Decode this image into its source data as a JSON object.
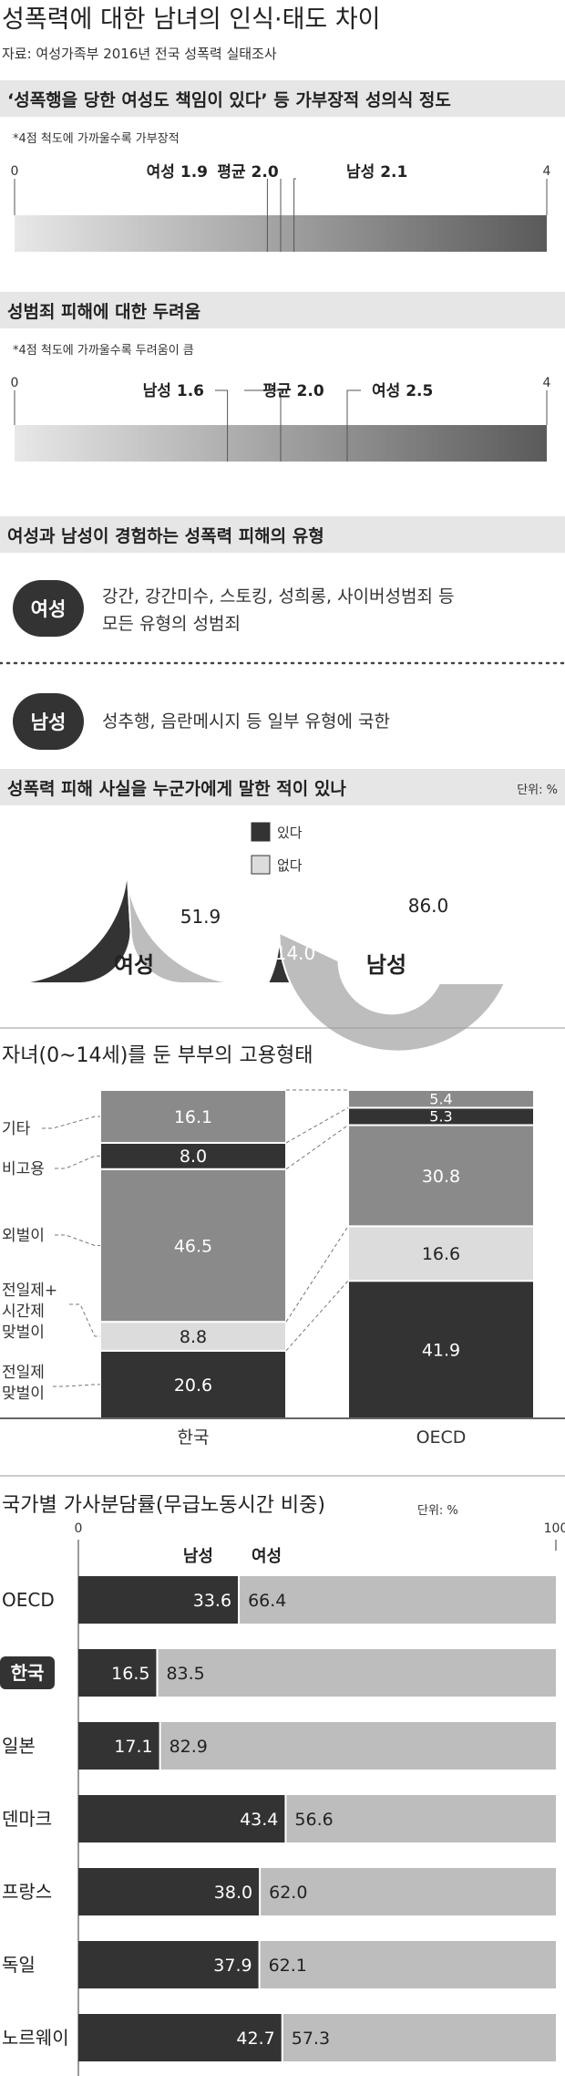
{
  "page": {
    "title": "성폭력에 대한 남녀의 인식·태도 차이",
    "source": "자료: 여성가족부 2016년 전국 성폭력 실태조사"
  },
  "colors": {
    "dark": "#333333",
    "mid": "#8a8a8a",
    "light": "#bdbdbd",
    "lighter": "#dcdcdc",
    "band": "#e6e6e6",
    "line": "#555555"
  },
  "chart_data": [
    {
      "id": "blame",
      "type": "bar",
      "title": "‘성폭행을 당한 여성도 책임이 있다’ 등 가부장적 성의식 정도",
      "note": "*4점 척도에 가까울수록 가부장적",
      "axis_min_label": "0",
      "axis_max_label": "4",
      "xlim": [
        0,
        4
      ],
      "markers": [
        {
          "label": "여성 1.9",
          "value": 1.9
        },
        {
          "label": "평균 2.0",
          "value": 2.0
        },
        {
          "label": "남성 2.1",
          "value": 2.1
        }
      ]
    },
    {
      "id": "fear",
      "type": "bar",
      "title": "성범죄 피해에 대한 두려움",
      "note": "*4점 척도에 가까울수록 두려움이 큼",
      "axis_min_label": "0",
      "axis_max_label": "4",
      "xlim": [
        0,
        4
      ],
      "markers": [
        {
          "label": "남성 1.6",
          "value": 1.6
        },
        {
          "label": "평균 2.0",
          "value": 2.0
        },
        {
          "label": "여성 2.5",
          "value": 2.5
        }
      ]
    },
    {
      "id": "types",
      "type": "table",
      "title": "여성과 남성이 경험하는 성폭력 피해의 유형",
      "rows": [
        {
          "badge": "여성",
          "line1": "강간, 강간미수, 스토킹, 성희롱, 사이버성범죄 등",
          "line2": "모든 유형의 성범죄"
        },
        {
          "badge": "남성",
          "line1": "성추행, 음란메시지 등 일부 유형에 국한",
          "line2": ""
        }
      ]
    },
    {
      "id": "disclosure",
      "type": "pie",
      "title": "성폭력 피해 사실을 누군가에게 말한 적이 있나",
      "unit": "단위: %",
      "legend": [
        {
          "label": "있다",
          "color": "#333333"
        },
        {
          "label": "없다",
          "color": "#dcdcdc"
        }
      ],
      "charts": [
        {
          "name": "여성",
          "yes": 48.1,
          "no": 51.9
        },
        {
          "name": "남성",
          "yes": 14.0,
          "no": 86.0
        }
      ]
    },
    {
      "id": "employment",
      "type": "bar",
      "stacked": true,
      "title": "자녀(0~14세)를 둔 부부의 고용형태",
      "categories": [
        "한국",
        "OECD"
      ],
      "segment_labels": [
        "전일제 맞벌이",
        "전일제+ 시간제 맞벌이",
        "외벌이",
        "비고용",
        "기타"
      ],
      "label_lines": [
        [
          "전일제",
          "맞벌이"
        ],
        [
          "전일제+",
          "시간제",
          "맞벌이"
        ],
        [
          "외벌이"
        ],
        [
          "비고용"
        ],
        [
          "기타"
        ]
      ],
      "series": [
        {
          "name": "전일제 맞벌이",
          "values": [
            20.6,
            41.9
          ]
        },
        {
          "name": "전일제+ 시간제 맞벌이",
          "values": [
            8.8,
            16.6
          ]
        },
        {
          "name": "외벌이",
          "values": [
            46.5,
            30.8
          ]
        },
        {
          "name": "비고용",
          "values": [
            8.0,
            5.3
          ]
        },
        {
          "name": "기타",
          "values": [
            16.1,
            5.4
          ]
        }
      ],
      "value_labels": [
        [
          "20.6",
          "41.9"
        ],
        [
          "8.8",
          "16.6"
        ],
        [
          "46.5",
          "30.8"
        ],
        [
          "8.0",
          "5.3"
        ],
        [
          "16.1",
          "5.4"
        ]
      ]
    },
    {
      "id": "housework",
      "type": "bar",
      "stacked": true,
      "orientation": "horizontal",
      "title": "국가별 가사분담률(무급노동시간 비중)",
      "unit": "단위: %",
      "axis_min_label": "0",
      "axis_max_label": "100",
      "xlim": [
        0,
        100
      ],
      "legend": [
        "남성",
        "여성"
      ],
      "highlight": "한국",
      "categories": [
        "OECD",
        "한국",
        "일본",
        "덴마크",
        "프랑스",
        "독일",
        "노르웨이"
      ],
      "series": [
        {
          "name": "남성",
          "values": [
            33.6,
            16.5,
            17.1,
            43.4,
            38.0,
            37.9,
            42.7
          ]
        },
        {
          "name": "여성",
          "values": [
            66.4,
            83.5,
            82.9,
            56.6,
            62.0,
            62.1,
            57.3
          ]
        }
      ],
      "value_labels": {
        "male": [
          "33.6",
          "16.5",
          "17.1",
          "43.4",
          "38.0",
          "37.9",
          "42.7"
        ],
        "female": [
          "66.4",
          "83.5",
          "82.9",
          "56.6",
          "62.0",
          "62.1",
          "57.3"
        ]
      }
    }
  ]
}
